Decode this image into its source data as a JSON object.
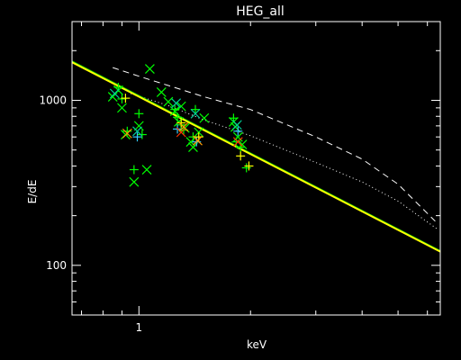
{
  "chart_data": {
    "type": "scatter",
    "title": "HEG_all",
    "xlabel": "keV",
    "ylabel": "E/dE",
    "xscale": "log",
    "yscale": "log",
    "xlim": [
      0.66,
      6.5
    ],
    "ylim": [
      50,
      3000
    ],
    "grid": false,
    "x_ticks": [
      {
        "value": 1,
        "label": "1"
      }
    ],
    "y_ticks": [
      {
        "value": 100,
        "label": "100"
      },
      {
        "value": 1000,
        "label": "1000"
      }
    ],
    "lines": [
      {
        "style": "dashed",
        "color": "#ffffff",
        "x": [
          0.85,
          1.0,
          1.5,
          2.0,
          3.0,
          4.0,
          5.0,
          6.3
        ],
        "y": [
          1580,
          1400,
          1050,
          880,
          600,
          440,
          310,
          185
        ]
      },
      {
        "style": "dotted",
        "color": "#ffffff",
        "x": [
          0.95,
          1.2,
          1.5,
          2.0,
          3.0,
          4.0,
          5.0,
          6.4
        ],
        "y": [
          1100,
          930,
          760,
          610,
          420,
          320,
          245,
          165
        ]
      },
      {
        "style": "solid",
        "color": "#00cc00",
        "x": [
          0.66,
          6.5
        ],
        "y": [
          1720,
          122
        ]
      },
      {
        "style": "solid",
        "color": "#ffff00",
        "x": [
          0.66,
          6.5
        ],
        "y": [
          1700,
          121
        ]
      }
    ],
    "series": [
      {
        "marker": "x",
        "color": "#00ff00",
        "points": [
          [
            0.85,
            1050
          ],
          [
            0.88,
            1150
          ],
          [
            0.9,
            900
          ],
          [
            0.92,
            620
          ],
          [
            0.97,
            320
          ],
          [
            1.0,
            700
          ],
          [
            1.05,
            380
          ],
          [
            1.07,
            1550
          ],
          [
            1.15,
            1120
          ],
          [
            1.2,
            980
          ],
          [
            1.25,
            860
          ],
          [
            1.28,
            740
          ],
          [
            1.3,
            920
          ],
          [
            1.33,
            680
          ],
          [
            1.38,
            560
          ],
          [
            1.4,
            520
          ],
          [
            1.45,
            640
          ],
          [
            1.5,
            780
          ],
          [
            1.8,
            740
          ],
          [
            1.82,
            690
          ],
          [
            1.85,
            600
          ],
          [
            1.9,
            540
          ]
        ]
      },
      {
        "marker": "+",
        "color": "#00ff00",
        "points": [
          [
            0.88,
            1200
          ],
          [
            0.9,
            1020
          ],
          [
            0.93,
            650
          ],
          [
            0.97,
            380
          ],
          [
            1.0,
            830
          ],
          [
            1.02,
            620
          ],
          [
            1.25,
            880
          ],
          [
            1.27,
            790
          ],
          [
            1.3,
            710
          ],
          [
            1.32,
            660
          ],
          [
            1.4,
            600
          ],
          [
            1.42,
            880
          ],
          [
            1.8,
            780
          ],
          [
            1.83,
            560
          ],
          [
            1.88,
            520
          ],
          [
            1.95,
            390
          ]
        ]
      },
      {
        "marker": "x",
        "color": "#00cc99",
        "points": [
          [
            0.86,
            1100
          ],
          [
            0.99,
            650
          ],
          [
            1.26,
            960
          ],
          [
            1.42,
            830
          ],
          [
            1.84,
            710
          ]
        ]
      },
      {
        "marker": "+",
        "color": "#33ccff",
        "points": [
          [
            0.99,
            600
          ],
          [
            1.27,
            670
          ],
          [
            1.43,
            560
          ],
          [
            1.85,
            650
          ]
        ]
      },
      {
        "marker": "x",
        "color": "#ff3300",
        "points": [
          [
            1.3,
            640
          ],
          [
            1.85,
            560
          ]
        ]
      },
      {
        "marker": "+",
        "color": "#ffff00",
        "points": [
          [
            0.92,
            1030
          ],
          [
            1.3,
            730
          ],
          [
            1.45,
            600
          ],
          [
            1.88,
            460
          ],
          [
            1.98,
            400
          ]
        ]
      },
      {
        "marker": "x",
        "color": "#ff9900",
        "points": [
          [
            0.93,
            630
          ],
          [
            1.32,
            690
          ],
          [
            1.44,
            570
          ]
        ]
      }
    ]
  }
}
